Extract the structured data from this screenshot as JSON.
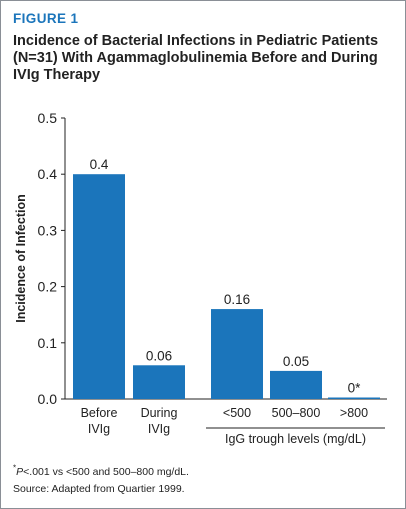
{
  "figure_label": "FIGURE 1",
  "figure_title": "Incidence of Bacterial Infections in Pediatric Patients (N=31) With Agammaglobulinemia Before and During IVIg Therapy",
  "chart_data": {
    "type": "bar",
    "ylabel": "Incidence of Infection",
    "ylim": [
      0,
      0.5
    ],
    "yticks": [
      0.0,
      0.1,
      0.2,
      0.3,
      0.4,
      0.5
    ],
    "ytick_labels": [
      "0.0",
      "0.1",
      "0.2",
      "0.3",
      "0.4",
      "0.5"
    ],
    "categories": [
      "Before IVIg",
      "During IVIg",
      "<500",
      "500–800",
      ">800"
    ],
    "category_lines": [
      [
        "Before",
        "IVIg"
      ],
      [
        "During",
        "IVIg"
      ],
      [
        "<500"
      ],
      [
        "500–800"
      ],
      [
        ">800"
      ]
    ],
    "values": [
      0.4,
      0.06,
      0.16,
      0.05,
      0
    ],
    "value_labels": [
      "0.4",
      "0.06",
      "0.16",
      "0.05",
      "0*"
    ],
    "group_label": "IgG trough levels (mg/dL)",
    "bar_color": "#1b75bb",
    "grid": false
  },
  "footnote": {
    "mark": "*",
    "p": "P",
    "text": "<.001 vs <500 and 500–800 mg/dL."
  },
  "source": "Source: Adapted from Quartier 1999."
}
